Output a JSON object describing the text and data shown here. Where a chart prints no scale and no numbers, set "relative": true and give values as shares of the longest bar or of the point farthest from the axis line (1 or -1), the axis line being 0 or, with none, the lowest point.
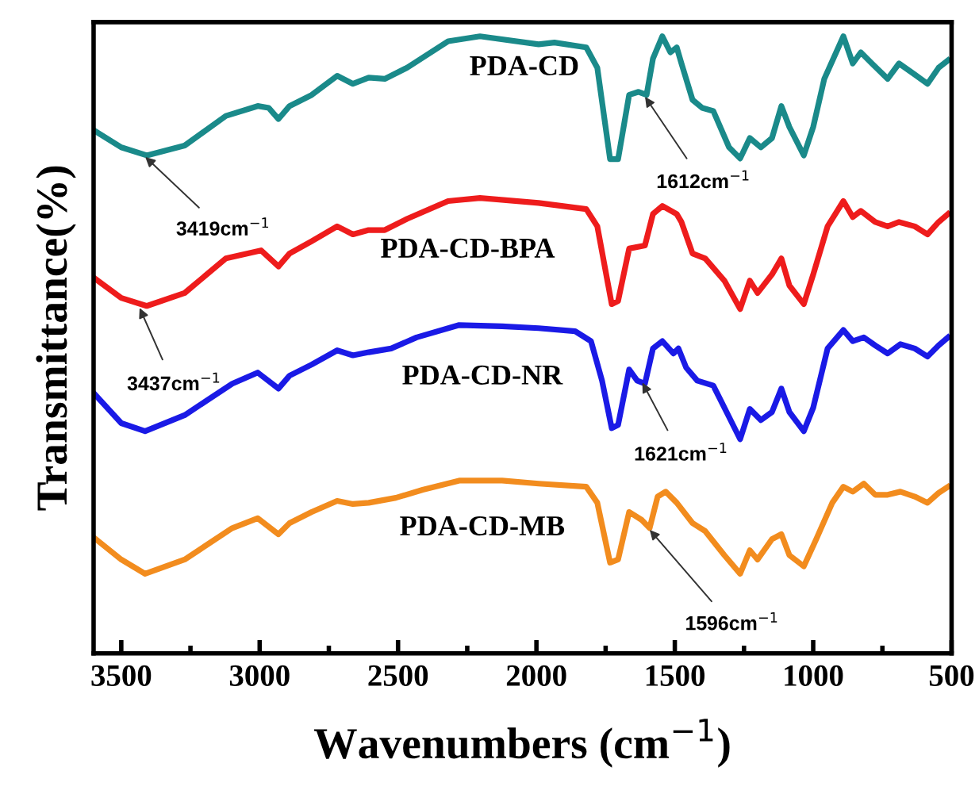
{
  "chart_data": {
    "type": "line",
    "relative": true,
    "xlabel": "Wavenumbers (cm$^{−1}$)",
    "ylabel": "Transmittance(%)",
    "xlim": [
      3600,
      500
    ],
    "xticks": [
      3500,
      {
        "value": 3250,
        "label": null
      },
      3000,
      {
        "value": 2750,
        "label": null
      },
      2500,
      {
        "value": 2250,
        "label": null
      },
      2000,
      {
        "value": 1750,
        "label": null
      },
      1500,
      {
        "value": 1250,
        "label": null
      },
      1000,
      {
        "value": 750,
        "label": null
      },
      500
    ],
    "tick_labels": "x",
    "grid": false,
    "legend": false,
    "series": [
      {
        "name": "PDA-CD",
        "color": "#1a8a8a",
        "x": [
          3600,
          3500,
          3408,
          3271,
          3122,
          3007,
          2967,
          2932,
          2892,
          2812,
          2720,
          2663,
          2606,
          2548,
          2468,
          2319,
          2204,
          1992,
          1935,
          1820,
          1780,
          1734,
          1705,
          1665,
          1631,
          1602,
          1579,
          1545,
          1516,
          1493,
          1476,
          1436,
          1401,
          1361,
          1304,
          1264,
          1229,
          1189,
          1149,
          1115,
          1086,
          1034,
          1000,
          960,
          891,
          857,
          828,
          788,
          731,
          690,
          633,
          587,
          547,
          513
        ],
        "values": [
          0.848,
          0.82,
          0.807,
          0.823,
          0.871,
          0.887,
          0.884,
          0.866,
          0.887,
          0.905,
          0.936,
          0.923,
          0.933,
          0.931,
          0.949,
          0.992,
          1.0,
          0.987,
          0.99,
          0.982,
          0.949,
          0.801,
          0.801,
          0.905,
          0.91,
          0.905,
          0.964,
          1.0,
          0.974,
          0.982,
          0.956,
          0.897,
          0.884,
          0.879,
          0.82,
          0.802,
          0.835,
          0.82,
          0.835,
          0.887,
          0.853,
          0.807,
          0.853,
          0.931,
          1.0,
          0.956,
          0.974,
          0.956,
          0.931,
          0.956,
          0.938,
          0.923,
          0.949,
          0.961
        ]
      },
      {
        "name": "PDA-CD-BPA",
        "color": "#ee1c1c",
        "x": [
          3600,
          3500,
          3408,
          3271,
          3122,
          2995,
          2932,
          2892,
          2812,
          2720,
          2663,
          2606,
          2548,
          2468,
          2319,
          2204,
          1992,
          1820,
          1780,
          1728,
          1705,
          1665,
          1608,
          1579,
          1545,
          1493,
          1476,
          1436,
          1390,
          1321,
          1264,
          1229,
          1201,
          1149,
          1115,
          1086,
          1034,
          1000,
          948,
          891,
          857,
          828,
          776,
          731,
          690,
          633,
          587,
          547,
          513
        ],
        "values": [
          0.609,
          0.576,
          0.563,
          0.584,
          0.64,
          0.653,
          0.627,
          0.648,
          0.668,
          0.692,
          0.679,
          0.686,
          0.686,
          0.704,
          0.733,
          0.738,
          0.73,
          0.72,
          0.692,
          0.566,
          0.571,
          0.656,
          0.661,
          0.712,
          0.725,
          0.712,
          0.699,
          0.648,
          0.64,
          0.604,
          0.558,
          0.604,
          0.584,
          0.614,
          0.64,
          0.596,
          0.566,
          0.614,
          0.692,
          0.733,
          0.707,
          0.717,
          0.699,
          0.692,
          0.699,
          0.692,
          0.679,
          0.699,
          0.712
        ]
      },
      {
        "name": "PDA-CD-NR",
        "color": "#1a1ae6",
        "x": [
          3600,
          3500,
          3414,
          3271,
          3099,
          3007,
          2932,
          2892,
          2812,
          2720,
          2663,
          2606,
          2525,
          2433,
          2279,
          2124,
          1992,
          1860,
          1803,
          1763,
          1728,
          1705,
          1665,
          1636,
          1608,
          1579,
          1545,
          1505,
          1487,
          1459,
          1419,
          1361,
          1304,
          1264,
          1229,
          1189,
          1149,
          1115,
          1086,
          1034,
          1000,
          948,
          891,
          857,
          817,
          776,
          731,
          685,
          633,
          587,
          547,
          513
        ],
        "values": [
          0.422,
          0.373,
          0.36,
          0.386,
          0.437,
          0.455,
          0.429,
          0.45,
          0.468,
          0.491,
          0.483,
          0.488,
          0.494,
          0.512,
          0.532,
          0.53,
          0.527,
          0.522,
          0.506,
          0.442,
          0.365,
          0.37,
          0.46,
          0.442,
          0.437,
          0.494,
          0.506,
          0.486,
          0.494,
          0.463,
          0.442,
          0.434,
          0.383,
          0.347,
          0.396,
          0.378,
          0.391,
          0.429,
          0.391,
          0.36,
          0.398,
          0.494,
          0.524,
          0.506,
          0.512,
          0.499,
          0.486,
          0.501,
          0.494,
          0.481,
          0.499,
          0.512
        ]
      },
      {
        "name": "PDA-CD-MB",
        "color": "#f28c1e",
        "x": [
          3600,
          3500,
          3414,
          3271,
          3099,
          3007,
          2932,
          2892,
          2812,
          2720,
          2663,
          2606,
          2508,
          2411,
          2279,
          2124,
          1992,
          1820,
          1780,
          1734,
          1705,
          1665,
          1619,
          1591,
          1562,
          1533,
          1493,
          1436,
          1390,
          1321,
          1264,
          1229,
          1201,
          1149,
          1115,
          1086,
          1034,
          989,
          931,
          891,
          857,
          817,
          776,
          731,
          685,
          633,
          587,
          547,
          513
        ],
        "values": [
          0.188,
          0.152,
          0.129,
          0.152,
          0.203,
          0.219,
          0.193,
          0.211,
          0.229,
          0.247,
          0.242,
          0.244,
          0.252,
          0.265,
          0.28,
          0.28,
          0.275,
          0.27,
          0.244,
          0.147,
          0.152,
          0.229,
          0.216,
          0.203,
          0.254,
          0.262,
          0.244,
          0.211,
          0.198,
          0.159,
          0.129,
          0.167,
          0.152,
          0.185,
          0.193,
          0.159,
          0.141,
          0.185,
          0.244,
          0.27,
          0.262,
          0.275,
          0.257,
          0.257,
          0.262,
          0.254,
          0.244,
          0.26,
          0.27
        ]
      }
    ],
    "annotations": [
      {
        "text": "3419cm$^{−1}$",
        "x": 3419,
        "y": 0.807
      },
      {
        "text": "3437cm$^{−1}$",
        "x": 3437,
        "y": 0.563
      },
      {
        "text": "1612cm$^{−1}$",
        "x": 1612,
        "y": 0.905
      },
      {
        "text": "1621cm$^{−1}$",
        "x": 1621,
        "y": 0.442
      },
      {
        "text": "1596cm$^{−1}$",
        "x": 1596,
        "y": 0.203
      }
    ]
  }
}
